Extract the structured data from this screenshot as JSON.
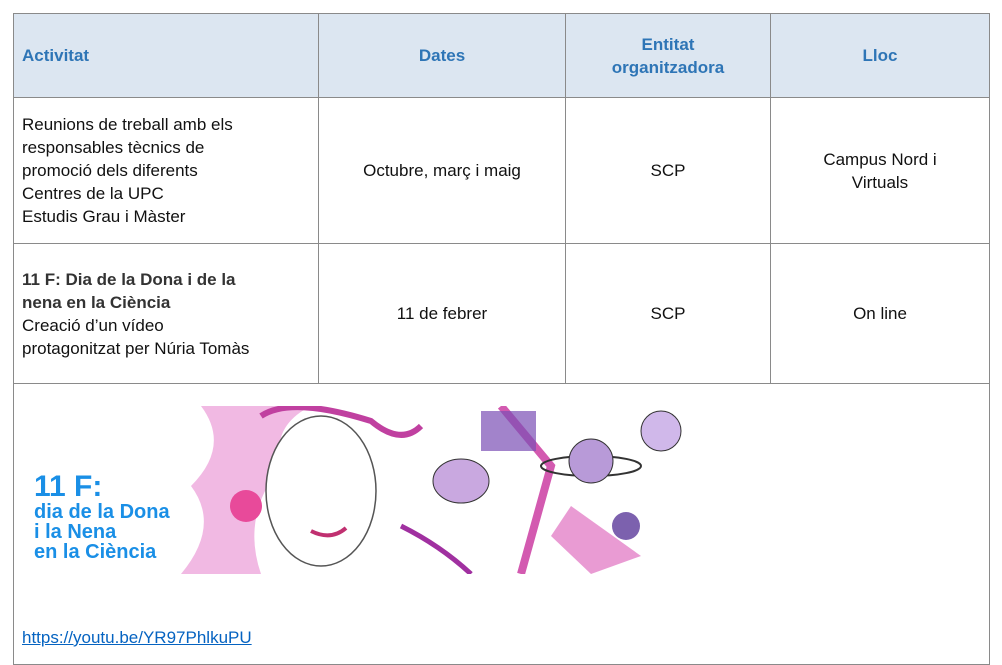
{
  "table": {
    "header": [
      "Activitat",
      "Dates",
      "Entitat organitzadora",
      "Lloc"
    ],
    "rows": [
      {
        "activity": {
          "lines": [
            "Reunions de treball amb els",
            "responsables tècnics de",
            "promoció dels diferents",
            "Centres de la UPC",
            "Estudis Grau i Màster"
          ]
        },
        "dates": "Octubre, març i maig",
        "entity": "SCP",
        "place": "Campus Nord i Virtuals"
      },
      {
        "activity": {
          "bold_lines": [
            "11 F: Dia de la Dona i de la",
            "nena en la Ciència"
          ],
          "lines": [
            "Creació d’un vídeo",
            "protagonitzat per Núria Tomàs"
          ]
        },
        "dates": "11 de febrer",
        "entity": "SCP",
        "place": "On line"
      }
    ],
    "banner": {
      "title": "11 F:",
      "lines": [
        "dia de la Dona",
        "i la Nena",
        "en la Ciència"
      ]
    },
    "link": "https://youtu.be/YR97PhlkuPU"
  }
}
